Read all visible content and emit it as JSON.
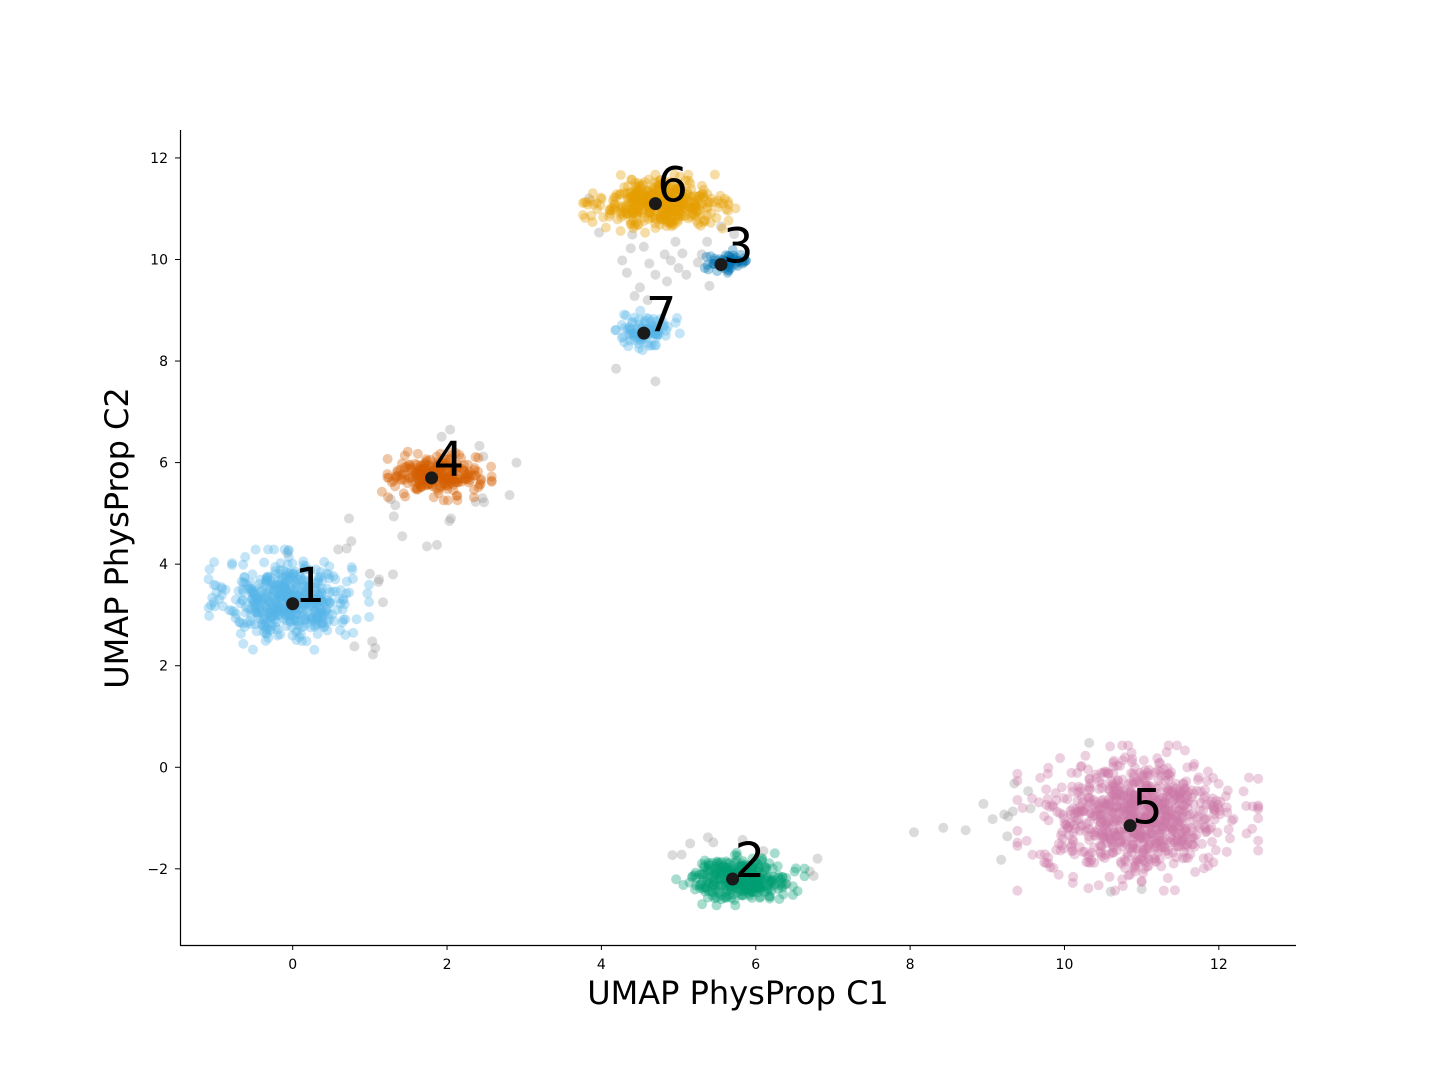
{
  "chart_data": {
    "type": "scatter",
    "title": "",
    "xlabel": "UMAP PhysProp C1",
    "ylabel": "UMAP PhysProp C2",
    "xlim": [
      -1.46,
      13.0
    ],
    "ylim": [
      -3.5,
      12.55
    ],
    "xticks": [
      0,
      2,
      4,
      6,
      8,
      10,
      12
    ],
    "yticks": [
      -2,
      0,
      2,
      4,
      6,
      8,
      10,
      12
    ],
    "xtick_labels": [
      "0",
      "2",
      "4",
      "6",
      "8",
      "10",
      "12"
    ],
    "ytick_labels": [
      "−2",
      "0",
      "2",
      "4",
      "6",
      "8",
      "10",
      "12"
    ],
    "grid": false,
    "legend": "none",
    "point_alpha": 0.35,
    "clusters": [
      {
        "label": "1",
        "color": "#56B4E9",
        "center": [
          -0.05,
          3.3
        ],
        "spread": [
          0.4,
          0.38
        ],
        "n": 520,
        "centroid": [
          0.0,
          3.22
        ]
      },
      {
        "label": "2",
        "color": "#009E73",
        "center": [
          5.8,
          -2.2
        ],
        "spread": [
          0.32,
          0.2
        ],
        "n": 340,
        "centroid": [
          5.7,
          -2.2
        ]
      },
      {
        "label": "3",
        "color": "#0072B2",
        "center": [
          5.65,
          9.95
        ],
        "spread": [
          0.14,
          0.09
        ],
        "n": 60,
        "centroid": [
          5.55,
          9.9
        ]
      },
      {
        "label": "4",
        "color": "#D55E00",
        "center": [
          1.85,
          5.75
        ],
        "spread": [
          0.28,
          0.19
        ],
        "n": 260,
        "centroid": [
          1.8,
          5.7
        ]
      },
      {
        "label": "5",
        "color": "#CC79A7",
        "center": [
          10.95,
          -1.0
        ],
        "spread": [
          0.6,
          0.55
        ],
        "n": 850,
        "centroid": [
          10.85,
          -1.15
        ]
      },
      {
        "label": "6",
        "color": "#E69F00",
        "center": [
          4.75,
          11.1
        ],
        "spread": [
          0.38,
          0.22
        ],
        "n": 440,
        "centroid": [
          4.7,
          11.1
        ]
      },
      {
        "label": "7",
        "color": "#56B4E9",
        "center": [
          4.6,
          8.6
        ],
        "spread": [
          0.16,
          0.16
        ],
        "n": 100,
        "centroid": [
          4.55,
          8.55
        ]
      }
    ],
    "noise": {
      "color": "#999999",
      "points": [
        [
          -0.07,
          4.22
        ],
        [
          0.59,
          4.29
        ],
        [
          0.7,
          4.31
        ],
        [
          0.76,
          4.45
        ],
        [
          0.73,
          4.9
        ],
        [
          1.0,
          3.81
        ],
        [
          1.12,
          3.7
        ],
        [
          1.11,
          3.65
        ],
        [
          1.3,
          3.8
        ],
        [
          1.17,
          3.25
        ],
        [
          0.8,
          2.38
        ],
        [
          1.03,
          2.48
        ],
        [
          1.07,
          2.35
        ],
        [
          1.04,
          2.22
        ],
        [
          1.27,
          5.28
        ],
        [
          1.33,
          5.16
        ],
        [
          1.42,
          4.55
        ],
        [
          1.31,
          4.94
        ],
        [
          1.74,
          4.35
        ],
        [
          1.87,
          4.38
        ],
        [
          2.05,
          4.9
        ],
        [
          2.03,
          4.85
        ],
        [
          2.37,
          5.23
        ],
        [
          2.48,
          5.22
        ],
        [
          2.46,
          5.3
        ],
        [
          2.81,
          5.36
        ],
        [
          2.9,
          6.0
        ],
        [
          2.47,
          6.12
        ],
        [
          2.42,
          6.33
        ],
        [
          2.04,
          6.65
        ],
        [
          1.93,
          6.51
        ],
        [
          3.84,
          11.2
        ],
        [
          3.97,
          10.53
        ],
        [
          4.4,
          10.49
        ],
        [
          4.38,
          10.22
        ],
        [
          4.27,
          9.98
        ],
        [
          4.33,
          9.74
        ],
        [
          4.43,
          9.28
        ],
        [
          4.5,
          9.45
        ],
        [
          4.62,
          9.92
        ],
        [
          4.7,
          9.7
        ],
        [
          4.82,
          10.1
        ],
        [
          4.9,
          9.98
        ],
        [
          4.85,
          9.57
        ],
        [
          4.96,
          10.35
        ],
        [
          5.0,
          9.83
        ],
        [
          5.05,
          10.12
        ],
        [
          5.25,
          9.94
        ],
        [
          5.3,
          10.1
        ],
        [
          5.4,
          9.48
        ],
        [
          5.37,
          10.35
        ],
        [
          5.55,
          10.65
        ],
        [
          5.72,
          10.5
        ],
        [
          5.1,
          9.7
        ],
        [
          4.6,
          9.2
        ],
        [
          4.55,
          10.25
        ],
        [
          4.19,
          7.85
        ],
        [
          4.7,
          7.6
        ],
        [
          4.92,
          -1.73
        ],
        [
          5.04,
          -1.72
        ],
        [
          5.15,
          -1.5
        ],
        [
          5.38,
          -1.38
        ],
        [
          5.45,
          -1.48
        ],
        [
          5.83,
          -1.43
        ],
        [
          6.1,
          -1.65
        ],
        [
          6.4,
          -2.3
        ],
        [
          6.7,
          -2.05
        ],
        [
          6.75,
          -2.14
        ],
        [
          6.8,
          -1.8
        ],
        [
          8.05,
          -1.28
        ],
        [
          8.43,
          -1.19
        ],
        [
          8.72,
          -1.24
        ],
        [
          8.95,
          -0.72
        ],
        [
          9.07,
          -1.02
        ],
        [
          9.18,
          -1.82
        ],
        [
          9.22,
          -0.93
        ],
        [
          9.26,
          -1.36
        ],
        [
          9.33,
          -0.87
        ],
        [
          9.35,
          -0.32
        ],
        [
          9.27,
          -0.97
        ],
        [
          9.53,
          -0.47
        ],
        [
          9.56,
          -0.81
        ],
        [
          10.32,
          0.48
        ],
        [
          11.0,
          -2.4
        ],
        [
          10.6,
          -2.45
        ]
      ]
    }
  }
}
